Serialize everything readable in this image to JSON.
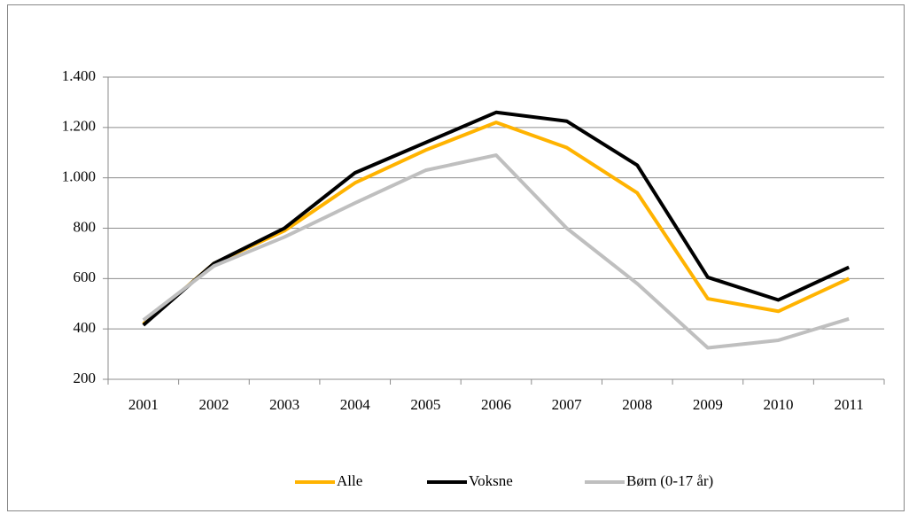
{
  "chart_data": {
    "type": "line",
    "categories": [
      "2001",
      "2002",
      "2003",
      "2004",
      "2005",
      "2006",
      "2007",
      "2008",
      "2009",
      "2010",
      "2011"
    ],
    "series": [
      {
        "name": "Alle",
        "color": "#ffb300",
        "values": [
          420,
          660,
          790,
          980,
          1110,
          1220,
          1120,
          940,
          520,
          470,
          600
        ]
      },
      {
        "name": "Voksne",
        "color": "#000000",
        "values": [
          415,
          660,
          800,
          1020,
          1140,
          1260,
          1225,
          1050,
          605,
          515,
          645
        ]
      },
      {
        "name": "Børn (0-17 år)",
        "color": "#bfbfbf",
        "values": [
          435,
          650,
          765,
          900,
          1030,
          1090,
          800,
          580,
          325,
          355,
          440
        ]
      }
    ],
    "ylim": [
      200,
      1400
    ],
    "yticks": [
      200,
      400,
      600,
      800,
      {
        "value": 1000,
        "label": "1.000"
      },
      {
        "value": 1200,
        "label": "1.200"
      },
      {
        "value": 1400,
        "label": "1.400"
      }
    ],
    "grid": true,
    "legend": "bottom"
  }
}
